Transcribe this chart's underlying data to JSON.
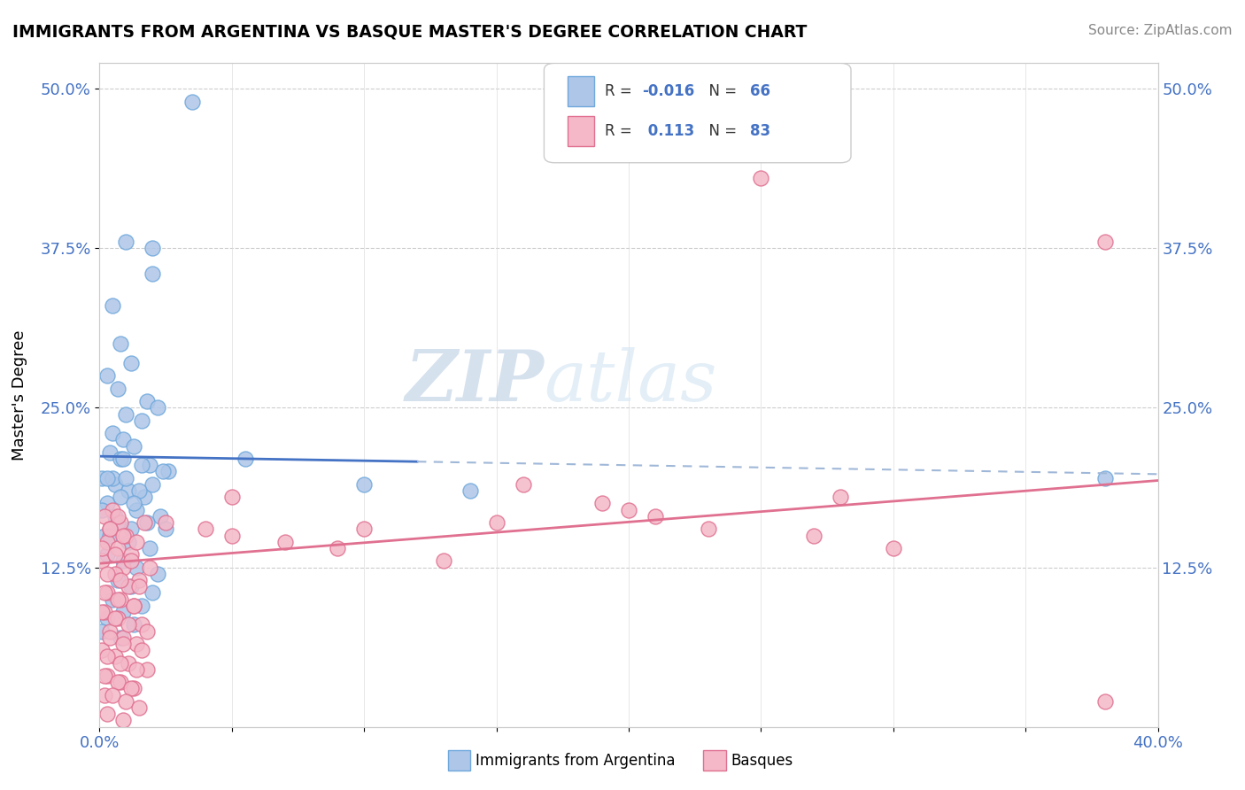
{
  "title": "IMMIGRANTS FROM ARGENTINA VS BASQUE MASTER'S DEGREE CORRELATION CHART",
  "source": "Source: ZipAtlas.com",
  "ylabel": "Master's Degree",
  "ytick_labels": [
    "12.5%",
    "25.0%",
    "37.5%",
    "50.0%"
  ],
  "ytick_values": [
    0.125,
    0.25,
    0.375,
    0.5
  ],
  "xmin": 0.0,
  "xmax": 0.4,
  "ymin": 0.0,
  "ymax": 0.52,
  "blue_color": "#aec6e8",
  "blue_edge": "#6fa8dc",
  "pink_color": "#f4b8c8",
  "pink_edge": "#e07090",
  "blue_line_color": "#4472c4",
  "blue_line_dash_color": "#a0b8d8",
  "pink_line_color": "#e07090",
  "watermark_zip": "ZIP",
  "watermark_atlas": "atlas",
  "blue_x": [
    0.035,
    0.01,
    0.02,
    0.02,
    0.005,
    0.008,
    0.012,
    0.003,
    0.007,
    0.018,
    0.022,
    0.01,
    0.016,
    0.005,
    0.009,
    0.013,
    0.004,
    0.008,
    0.019,
    0.026,
    0.001,
    0.006,
    0.011,
    0.017,
    0.003,
    0.014,
    0.023,
    0.007,
    0.012,
    0.002,
    0.009,
    0.016,
    0.024,
    0.005,
    0.01,
    0.003,
    0.02,
    0.015,
    0.008,
    0.013,
    0.001,
    0.006,
    0.018,
    0.025,
    0.004,
    0.011,
    0.019,
    0.003,
    0.009,
    0.014,
    0.022,
    0.007,
    0.012,
    0.02,
    0.005,
    0.016,
    0.009,
    0.003,
    0.013,
    0.001,
    0.008,
    0.055,
    0.1,
    0.14,
    0.38
  ],
  "blue_y": [
    0.49,
    0.38,
    0.375,
    0.355,
    0.33,
    0.3,
    0.285,
    0.275,
    0.265,
    0.255,
    0.25,
    0.245,
    0.24,
    0.23,
    0.225,
    0.22,
    0.215,
    0.21,
    0.205,
    0.2,
    0.195,
    0.19,
    0.185,
    0.18,
    0.175,
    0.17,
    0.165,
    0.16,
    0.155,
    0.15,
    0.21,
    0.205,
    0.2,
    0.195,
    0.195,
    0.195,
    0.19,
    0.185,
    0.18,
    0.175,
    0.17,
    0.165,
    0.16,
    0.155,
    0.15,
    0.145,
    0.14,
    0.135,
    0.13,
    0.125,
    0.12,
    0.115,
    0.11,
    0.105,
    0.1,
    0.095,
    0.09,
    0.085,
    0.08,
    0.075,
    0.07,
    0.21,
    0.19,
    0.185,
    0.195
  ],
  "pink_x": [
    0.005,
    0.002,
    0.008,
    0.004,
    0.01,
    0.003,
    0.007,
    0.012,
    0.001,
    0.009,
    0.006,
    0.015,
    0.011,
    0.003,
    0.008,
    0.013,
    0.002,
    0.007,
    0.016,
    0.004,
    0.009,
    0.014,
    0.001,
    0.006,
    0.011,
    0.018,
    0.003,
    0.008,
    0.013,
    0.002,
    0.007,
    0.017,
    0.004,
    0.009,
    0.014,
    0.001,
    0.006,
    0.012,
    0.019,
    0.003,
    0.008,
    0.015,
    0.002,
    0.007,
    0.013,
    0.001,
    0.006,
    0.011,
    0.018,
    0.004,
    0.009,
    0.016,
    0.003,
    0.008,
    0.014,
    0.002,
    0.007,
    0.012,
    0.005,
    0.01,
    0.015,
    0.003,
    0.009,
    0.025,
    0.04,
    0.05,
    0.07,
    0.09,
    0.13,
    0.16,
    0.19,
    0.21,
    0.23,
    0.27,
    0.3,
    0.25,
    0.38,
    0.38,
    0.05,
    0.1,
    0.15,
    0.2,
    0.28
  ],
  "pink_y": [
    0.17,
    0.165,
    0.16,
    0.155,
    0.15,
    0.145,
    0.14,
    0.135,
    0.13,
    0.125,
    0.12,
    0.115,
    0.11,
    0.105,
    0.1,
    0.095,
    0.09,
    0.085,
    0.08,
    0.075,
    0.07,
    0.065,
    0.06,
    0.055,
    0.05,
    0.045,
    0.04,
    0.035,
    0.03,
    0.025,
    0.165,
    0.16,
    0.155,
    0.15,
    0.145,
    0.14,
    0.135,
    0.13,
    0.125,
    0.12,
    0.115,
    0.11,
    0.105,
    0.1,
    0.095,
    0.09,
    0.085,
    0.08,
    0.075,
    0.07,
    0.065,
    0.06,
    0.055,
    0.05,
    0.045,
    0.04,
    0.035,
    0.03,
    0.025,
    0.02,
    0.015,
    0.01,
    0.005,
    0.16,
    0.155,
    0.15,
    0.145,
    0.14,
    0.13,
    0.19,
    0.175,
    0.165,
    0.155,
    0.15,
    0.14,
    0.43,
    0.38,
    0.02,
    0.18,
    0.155,
    0.16,
    0.17,
    0.18
  ]
}
